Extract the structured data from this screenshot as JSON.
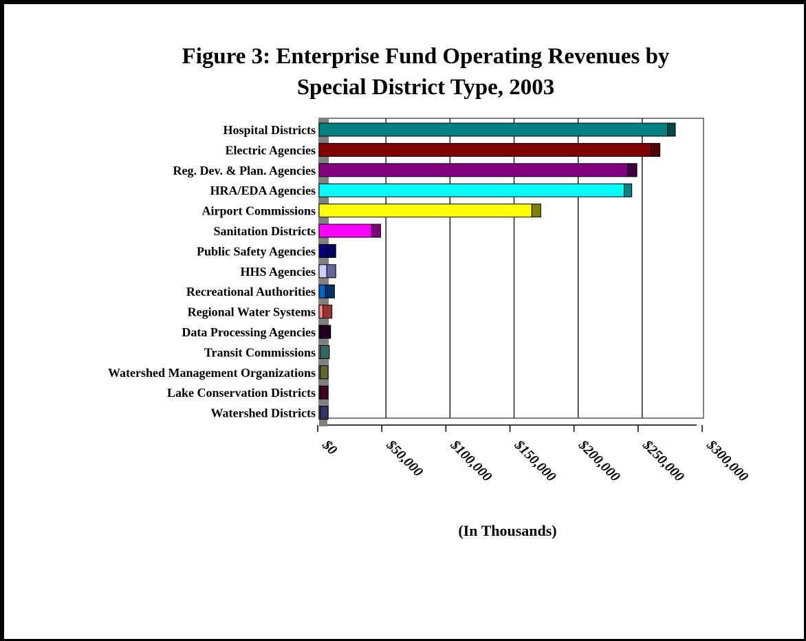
{
  "chart_data": {
    "type": "bar",
    "orientation": "horizontal",
    "stacked": true,
    "title": "Figure 3:  Enterprise Fund Operating Revenues by Special District Type, 2003",
    "title_lines": [
      "Figure 3:  Enterprise Fund Operating Revenues by",
      "Special District Type, 2003"
    ],
    "xlabel": "(In Thousands)",
    "ylabel": "",
    "xlim": [
      0,
      300000
    ],
    "xticks": [
      0,
      50000,
      100000,
      150000,
      200000,
      250000,
      300000
    ],
    "xtick_labels": [
      "$0",
      "$50,000",
      "$100,000",
      "$150,000",
      "$200,000",
      "$250,000",
      "$300,000"
    ],
    "grid": "vertical",
    "legend": "none",
    "categories": [
      "Hospital Districts",
      "Electric Agencies",
      "Reg. Dev. & Plan. Agencies",
      "HRA/EDA Agencies",
      "Airport Commissions",
      "Sanitation Districts",
      "Public Safety Agencies",
      "HHS Agencies",
      "Recreational Authorities",
      "Regional Water Systems",
      "Data Processing Agencies",
      "Transit Commissions",
      "Watershed Management Organizations",
      "Lake Conservation Districts",
      "Watershed Districts"
    ],
    "series": [
      {
        "values": [
          272000,
          259000,
          241000,
          238000,
          166000,
          41000,
          6000,
          6000,
          5000,
          3000,
          1000,
          1000,
          1000,
          1000,
          1000
        ]
      },
      {
        "values": [
          6000,
          7000,
          7000,
          6000,
          7000,
          7000,
          7000,
          7000,
          7000,
          7000,
          8000,
          7000,
          6000,
          6000,
          6000
        ]
      }
    ],
    "colors": {
      "front": [
        "#008080",
        "#800000",
        "#800080",
        "#00ffff",
        "#ffff00",
        "#ff00ff",
        "#000080",
        "#ccccff",
        "#0066cc",
        "#ff8080",
        "#330033",
        "#99cccc",
        "#999966",
        "#663344",
        "#666699"
      ],
      "back": [
        "#004a4a",
        "#550000",
        "#400040",
        "#008080",
        "#808000",
        "#800080",
        "#000060",
        "#666699",
        "#003366",
        "#993333",
        "#220022",
        "#336666",
        "#666633",
        "#440022",
        "#333366"
      ],
      "depth_bar": "#808080",
      "plot_border": "#808080",
      "grid": "#000000"
    }
  }
}
